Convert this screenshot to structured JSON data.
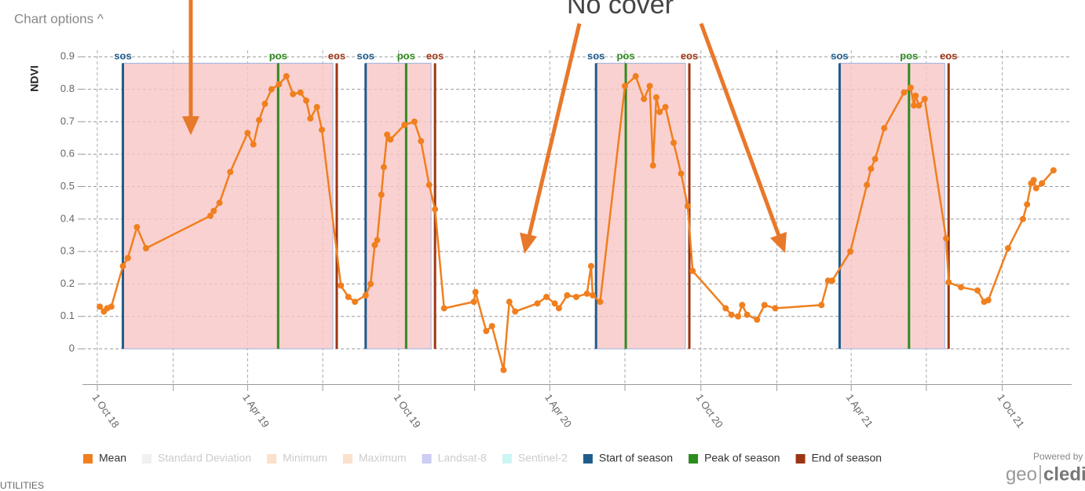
{
  "header": {
    "chart_options": "Chart options ^",
    "utilities": "UTILITIES",
    "powered_by": "Powered by",
    "brand_left": "geo",
    "brand_right": "cledian"
  },
  "chart_data": {
    "type": "line",
    "annotation": "No cover",
    "ylabel": "NDVI",
    "xlim": [
      "2018-09-13",
      "2021-12-24"
    ],
    "xticks": [
      {
        "value": "2018-10-01",
        "label": "1 Oct 18"
      },
      {
        "value": "2019-04-01",
        "label": "1 Apr 19"
      },
      {
        "value": "2019-10-01",
        "label": "1 Oct 19"
      },
      {
        "value": "2020-04-01",
        "label": "1 Apr 20"
      },
      {
        "value": "2020-10-01",
        "label": "1 Oct 20"
      },
      {
        "value": "2021-04-01",
        "label": "1 Apr 21"
      },
      {
        "value": "2021-10-01",
        "label": "1 Oct 21"
      }
    ],
    "xminor": [
      "2019-01-01",
      "2019-07-01",
      "2020-01-01",
      "2020-07-01",
      "2021-01-01",
      "2021-07-01"
    ],
    "ylim": [
      -0.11,
      0.92
    ],
    "yticks": [
      0,
      0.1,
      0.2,
      0.3,
      0.4,
      0.5,
      0.6,
      0.7,
      0.8,
      0.9
    ],
    "grid": true,
    "series": [
      {
        "name": "Mean",
        "color": "#f07f1e",
        "x": [
          "2018-10-04",
          "2018-10-09",
          "2018-10-13",
          "2018-10-18",
          "2018-11-01",
          "2018-11-07",
          "2018-11-18",
          "2018-11-29",
          "2019-02-15",
          "2019-02-19",
          "2019-02-26",
          "2019-03-11",
          "2019-04-01",
          "2019-04-08",
          "2019-04-15",
          "2019-04-22",
          "2019-04-30",
          "2019-05-09",
          "2019-05-18",
          "2019-05-26",
          "2019-06-04",
          "2019-06-11",
          "2019-06-16",
          "2019-06-24",
          "2019-06-30",
          "2019-07-23",
          "2019-08-01",
          "2019-08-09",
          "2019-08-22",
          "2019-08-28",
          "2019-09-02",
          "2019-09-05",
          "2019-09-10",
          "2019-09-13",
          "2019-09-17",
          "2019-09-21",
          "2019-10-08",
          "2019-10-20",
          "2019-10-28",
          "2019-11-07",
          "2019-11-14",
          "2019-11-25",
          "2019-12-31",
          "2020-01-02",
          "2020-01-15",
          "2020-01-22",
          "2020-02-05",
          "2020-02-12",
          "2020-02-19",
          "2020-03-17",
          "2020-03-28",
          "2020-04-07",
          "2020-04-12",
          "2020-04-22",
          "2020-05-03",
          "2020-05-16",
          "2020-05-21",
          "2020-05-23",
          "2020-06-01",
          "2020-07-01",
          "2020-07-14",
          "2020-07-24",
          "2020-07-31",
          "2020-08-04",
          "2020-08-08",
          "2020-08-12",
          "2020-08-19",
          "2020-08-29",
          "2020-09-07",
          "2020-09-15",
          "2020-09-21",
          "2020-10-31",
          "2020-11-07",
          "2020-11-15",
          "2020-11-20",
          "2020-11-26",
          "2020-12-08",
          "2020-12-17",
          "2020-12-30",
          "2021-02-24",
          "2021-03-04",
          "2021-03-09",
          "2021-03-31",
          "2021-04-20",
          "2021-04-25",
          "2021-04-30",
          "2021-05-11",
          "2021-06-04",
          "2021-06-12",
          "2021-06-16",
          "2021-06-18",
          "2021-06-22",
          "2021-06-29",
          "2021-07-25",
          "2021-07-28",
          "2021-08-12",
          "2021-09-01",
          "2021-09-09",
          "2021-09-14",
          "2021-10-08",
          "2021-10-26",
          "2021-10-31",
          "2021-11-05",
          "2021-11-08",
          "2021-11-11",
          "2021-11-18",
          "2021-12-02"
        ],
        "values": [
          0.13,
          0.115,
          0.125,
          0.13,
          0.255,
          0.28,
          0.375,
          0.31,
          0.41,
          0.425,
          0.45,
          0.545,
          0.665,
          0.63,
          0.705,
          0.755,
          0.8,
          0.815,
          0.84,
          0.785,
          0.79,
          0.765,
          0.71,
          0.745,
          0.675,
          0.195,
          0.16,
          0.145,
          0.165,
          0.2,
          0.32,
          0.335,
          0.475,
          0.56,
          0.66,
          0.645,
          0.69,
          0.7,
          0.64,
          0.505,
          0.43,
          0.125,
          0.145,
          0.175,
          0.055,
          0.07,
          -0.065,
          0.145,
          0.115,
          0.14,
          0.16,
          0.14,
          0.125,
          0.165,
          0.16,
          0.17,
          0.255,
          0.165,
          0.145,
          0.81,
          0.84,
          0.77,
          0.81,
          0.565,
          0.775,
          0.73,
          0.745,
          0.635,
          0.54,
          0.44,
          0.24,
          0.125,
          0.105,
          0.1,
          0.135,
          0.105,
          0.09,
          0.135,
          0.125,
          0.135,
          0.21,
          0.21,
          0.3,
          0.505,
          0.555,
          0.585,
          0.68,
          0.79,
          0.805,
          0.75,
          0.78,
          0.75,
          0.77,
          0.34,
          0.205,
          0.19,
          0.18,
          0.145,
          0.15,
          0.31,
          0.4,
          0.445,
          0.51,
          0.52,
          0.495,
          0.51,
          0.55
        ]
      }
    ],
    "season_labels": [
      "sos",
      "pos",
      "eos"
    ],
    "season_colors": [
      "#1f5c8c",
      "#2e8b1e",
      "#9c3413"
    ],
    "seasons": [
      [
        "2018-11-01",
        "2019-05-08",
        "2019-07-18"
      ],
      [
        "2019-08-22",
        "2019-10-10",
        "2019-11-14"
      ],
      [
        "2020-05-27",
        "2020-07-02",
        "2020-09-17"
      ],
      [
        "2021-03-18",
        "2021-06-10",
        "2021-07-28"
      ]
    ],
    "legend": [
      {
        "name": "Standard Deviation",
        "color": "#f0f0f0",
        "active": false
      },
      {
        "name": "Minimum",
        "color": "#fbe0cc",
        "active": false
      },
      {
        "name": "Maximum",
        "color": "#fbe0cc",
        "active": false
      },
      {
        "name": "Landsat-8",
        "color": "#ccccf5",
        "active": false
      },
      {
        "name": "Sentinel-2",
        "color": "#ccf5f5",
        "active": false
      },
      {
        "name": "Start of season",
        "color": "#1f5c8c",
        "active": true
      },
      {
        "name": "Peak of season",
        "color": "#2e8b1e",
        "active": true
      },
      {
        "name": "End of season",
        "color": "#9c3413",
        "active": true
      }
    ]
  }
}
